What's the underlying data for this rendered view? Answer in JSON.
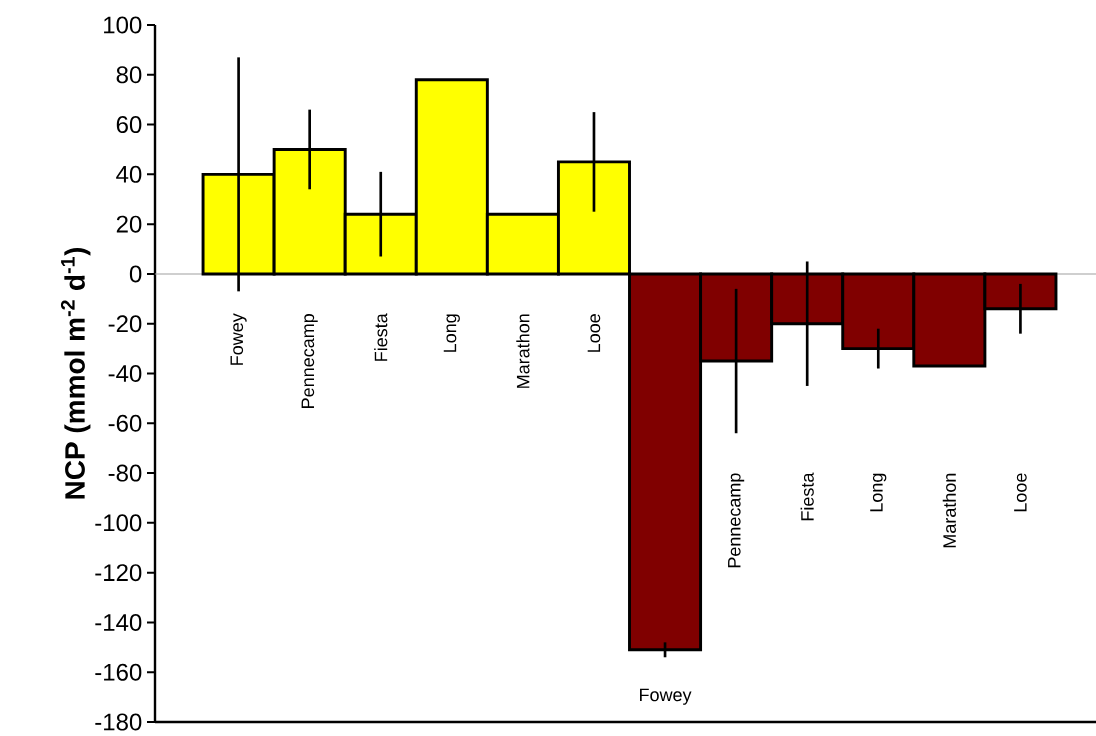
{
  "chart_data": {
    "type": "bar",
    "ylabel": "NCP (mmol m$^{-2}$ d$^{-1}$)",
    "categories": [
      "Fowey",
      "Pennecamp",
      "Fiesta",
      "Long",
      "Marathon",
      "Looe",
      "Fowey",
      "Pennecamp",
      "Fiesta",
      "Long",
      "Marathon",
      "Looe"
    ],
    "values": [
      40,
      50,
      24,
      78,
      24,
      45,
      -151,
      -35,
      -20,
      -30,
      -37,
      -14
    ],
    "colors": [
      "#ffff00",
      "#ffff00",
      "#ffff00",
      "#ffff00",
      "#ffff00",
      "#ffff00",
      "#800000",
      "#800000",
      "#800000",
      "#800000",
      "#800000",
      "#800000"
    ],
    "errors": [
      47,
      16,
      17,
      null,
      null,
      20,
      3,
      29,
      25,
      8,
      null,
      10
    ],
    "ylim": [
      -180,
      100
    ],
    "yticks": [
      -180,
      -160,
      -140,
      -120,
      -100,
      -80,
      -60,
      -40,
      -20,
      0,
      20,
      40,
      60,
      80,
      100
    ],
    "ref_lines": [
      {
        "axis": "y",
        "value": 0,
        "color": "#a0a0a0"
      }
    ],
    "grid": false
  }
}
